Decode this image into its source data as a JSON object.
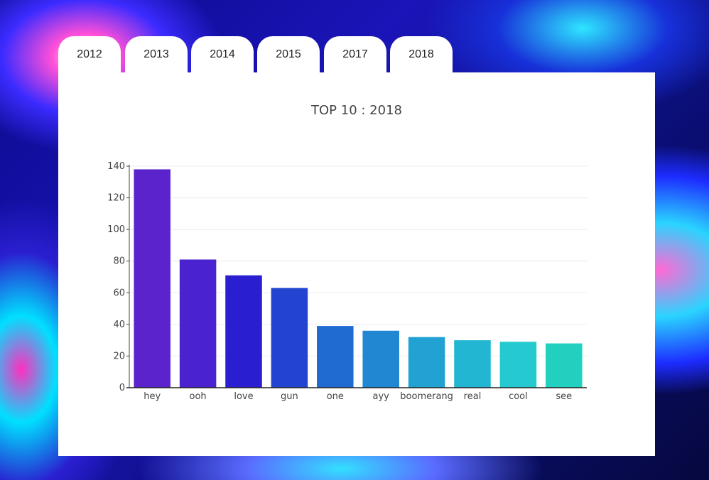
{
  "tabs": [
    {
      "label": "2012"
    },
    {
      "label": "2013"
    },
    {
      "label": "2014"
    },
    {
      "label": "2015"
    },
    {
      "label": "2017"
    },
    {
      "label": "2018"
    }
  ],
  "chart_data": {
    "type": "bar",
    "title": "TOP 10 : 2018",
    "xlabel": "",
    "ylabel": "",
    "categories": [
      "hey",
      "ooh",
      "love",
      "gun",
      "one",
      "ayy",
      "boomerang",
      "real",
      "cool",
      "see"
    ],
    "values": [
      138,
      81,
      71,
      63,
      39,
      36,
      32,
      30,
      29,
      28
    ],
    "colors": [
      "#5b23cc",
      "#4a22d0",
      "#2a1fd0",
      "#2344d0",
      "#1f6bd2",
      "#2187d2",
      "#22a2d2",
      "#23b6d2",
      "#24cad0",
      "#22d0c0"
    ],
    "ylim": [
      0,
      140
    ],
    "yticks": [
      0,
      20,
      40,
      60,
      80,
      100,
      120,
      140
    ],
    "grid": true,
    "legend": "none"
  }
}
